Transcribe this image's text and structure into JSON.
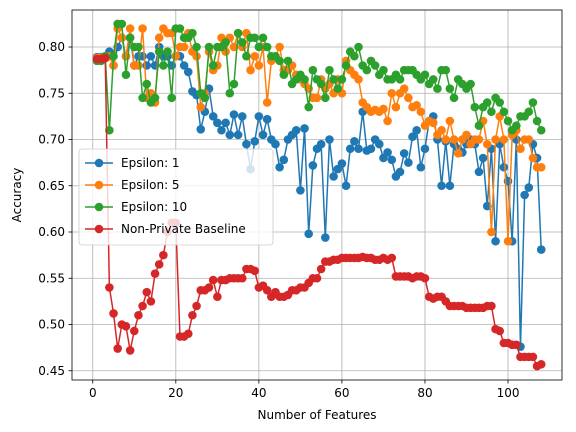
{
  "chart_data": {
    "type": "line",
    "title": "",
    "xlabel": "Number of Features",
    "ylabel": "Accuracy",
    "xlim": [
      -5,
      113
    ],
    "ylim": [
      0.44,
      0.84
    ],
    "xticks": [
      0,
      20,
      40,
      60,
      80,
      100
    ],
    "yticks": [
      0.45,
      0.5,
      0.55,
      0.6,
      0.65,
      0.7,
      0.75,
      0.8
    ],
    "xtick_labels": [
      "0",
      "20",
      "40",
      "60",
      "80",
      "100"
    ],
    "ytick_labels": [
      "0.45",
      "0.50",
      "0.55",
      "0.60",
      "0.65",
      "0.70",
      "0.75",
      "0.80"
    ],
    "grid": true,
    "legend_position": "center-left",
    "x": [
      1,
      2,
      3,
      4,
      5,
      6,
      7,
      8,
      9,
      10,
      11,
      12,
      13,
      14,
      15,
      16,
      17,
      18,
      19,
      20,
      21,
      22,
      23,
      24,
      25,
      26,
      27,
      28,
      29,
      30,
      31,
      32,
      33,
      34,
      35,
      36,
      37,
      38,
      39,
      40,
      41,
      42,
      43,
      44,
      45,
      46,
      47,
      48,
      49,
      50,
      51,
      52,
      53,
      54,
      55,
      56,
      57,
      58,
      59,
      60,
      61,
      62,
      63,
      64,
      65,
      66,
      67,
      68,
      69,
      70,
      71,
      72,
      73,
      74,
      75,
      76,
      77,
      78,
      79,
      80,
      81,
      82,
      83,
      84,
      85,
      86,
      87,
      88,
      89,
      90,
      91,
      92,
      93,
      94,
      95,
      96,
      97,
      98,
      99,
      100,
      101,
      102,
      103,
      104,
      105,
      106,
      107,
      108
    ],
    "series": [
      {
        "name": "Epsilon: 1",
        "color": "#1f77b4",
        "values": [
          0.789,
          0.789,
          0.79,
          0.795,
          0.78,
          0.8,
          0.81,
          0.79,
          0.81,
          0.78,
          0.79,
          0.79,
          0.78,
          0.79,
          0.78,
          0.8,
          0.79,
          0.79,
          0.78,
          0.79,
          0.79,
          0.78,
          0.773,
          0.752,
          0.748,
          0.711,
          0.73,
          0.755,
          0.725,
          0.718,
          0.71,
          0.718,
          0.705,
          0.727,
          0.705,
          0.725,
          0.695,
          0.668,
          0.698,
          0.725,
          0.705,
          0.722,
          0.7,
          0.695,
          0.67,
          0.678,
          0.7,
          0.705,
          0.71,
          0.645,
          0.712,
          0.598,
          0.672,
          0.69,
          0.695,
          0.594,
          0.7,
          0.66,
          0.668,
          0.674,
          0.65,
          0.69,
          0.698,
          0.69,
          0.73,
          0.688,
          0.69,
          0.7,
          0.695,
          0.68,
          0.686,
          0.678,
          0.66,
          0.665,
          0.685,
          0.675,
          0.703,
          0.71,
          0.67,
          0.69,
          0.72,
          0.725,
          0.7,
          0.65,
          0.698,
          0.65,
          0.695,
          0.69,
          0.686,
          0.695,
          0.7,
          0.695,
          0.665,
          0.68,
          0.628,
          0.69,
          0.59,
          0.695,
          0.67,
          0.655,
          0.59,
          0.7,
          0.476,
          0.64,
          0.648,
          0.695,
          0.68,
          0.581
        ]
      },
      {
        "name": "Epsilon: 5",
        "color": "#ff7f0e",
        "values": [
          0.788,
          0.788,
          0.79,
          0.79,
          0.78,
          0.82,
          0.81,
          0.79,
          0.82,
          0.78,
          0.78,
          0.82,
          0.745,
          0.75,
          0.74,
          0.81,
          0.82,
          0.815,
          0.815,
          0.79,
          0.8,
          0.8,
          0.815,
          0.795,
          0.79,
          0.735,
          0.75,
          0.795,
          0.775,
          0.78,
          0.81,
          0.795,
          0.81,
          0.8,
          0.815,
          0.8,
          0.815,
          0.775,
          0.79,
          0.78,
          0.8,
          0.74,
          0.785,
          0.79,
          0.8,
          0.775,
          0.775,
          0.78,
          0.77,
          0.765,
          0.76,
          0.755,
          0.745,
          0.745,
          0.765,
          0.755,
          0.76,
          0.75,
          0.765,
          0.75,
          0.785,
          0.775,
          0.77,
          0.765,
          0.74,
          0.735,
          0.73,
          0.732,
          0.73,
          0.733,
          0.72,
          0.75,
          0.735,
          0.75,
          0.755,
          0.745,
          0.735,
          0.737,
          0.73,
          0.715,
          0.72,
          0.718,
          0.705,
          0.71,
          0.7,
          0.72,
          0.7,
          0.685,
          0.7,
          0.705,
          0.695,
          0.7,
          0.7,
          0.72,
          0.695,
          0.6,
          0.7,
          0.725,
          0.7,
          0.59,
          0.705,
          0.71,
          0.69,
          0.7,
          0.7,
          0.68,
          0.67,
          0.67
        ]
      },
      {
        "name": "Epsilon: 10",
        "color": "#2ca02c",
        "values": [
          0.785,
          0.785,
          0.79,
          0.71,
          0.79,
          0.825,
          0.825,
          0.77,
          0.81,
          0.8,
          0.8,
          0.745,
          0.76,
          0.74,
          0.745,
          0.795,
          0.78,
          0.795,
          0.745,
          0.82,
          0.82,
          0.81,
          0.81,
          0.815,
          0.8,
          0.75,
          0.745,
          0.8,
          0.78,
          0.8,
          0.8,
          0.805,
          0.75,
          0.76,
          0.815,
          0.805,
          0.79,
          0.81,
          0.81,
          0.8,
          0.81,
          0.8,
          0.79,
          0.79,
          0.785,
          0.77,
          0.785,
          0.76,
          0.765,
          0.77,
          0.765,
          0.735,
          0.775,
          0.765,
          0.76,
          0.745,
          0.775,
          0.765,
          0.755,
          0.765,
          0.78,
          0.795,
          0.79,
          0.8,
          0.78,
          0.775,
          0.785,
          0.78,
          0.77,
          0.775,
          0.765,
          0.765,
          0.77,
          0.765,
          0.775,
          0.775,
          0.775,
          0.77,
          0.765,
          0.77,
          0.76,
          0.765,
          0.755,
          0.775,
          0.775,
          0.755,
          0.745,
          0.765,
          0.76,
          0.755,
          0.76,
          0.735,
          0.715,
          0.735,
          0.74,
          0.73,
          0.745,
          0.74,
          0.73,
          0.72,
          0.71,
          0.715,
          0.725,
          0.725,
          0.73,
          0.74,
          0.72,
          0.71
        ]
      },
      {
        "name": "Non-Private Baseline",
        "color": "#d62728",
        "values": [
          0.787,
          0.787,
          0.788,
          0.54,
          0.512,
          0.474,
          0.5,
          0.498,
          0.472,
          0.493,
          0.51,
          0.52,
          0.535,
          0.525,
          0.555,
          0.565,
          0.575,
          0.6,
          0.61,
          0.61,
          0.487,
          0.487,
          0.49,
          0.51,
          0.52,
          0.537,
          0.537,
          0.54,
          0.548,
          0.53,
          0.548,
          0.548,
          0.55,
          0.55,
          0.55,
          0.55,
          0.56,
          0.56,
          0.558,
          0.54,
          0.542,
          0.537,
          0.53,
          0.535,
          0.53,
          0.53,
          0.532,
          0.537,
          0.537,
          0.54,
          0.54,
          0.545,
          0.55,
          0.55,
          0.56,
          0.568,
          0.568,
          0.57,
          0.57,
          0.572,
          0.572,
          0.572,
          0.572,
          0.572,
          0.573,
          0.572,
          0.572,
          0.57,
          0.57,
          0.572,
          0.57,
          0.572,
          0.552,
          0.552,
          0.552,
          0.552,
          0.55,
          0.552,
          0.552,
          0.55,
          0.53,
          0.528,
          0.53,
          0.53,
          0.525,
          0.52,
          0.52,
          0.52,
          0.52,
          0.518,
          0.518,
          0.518,
          0.518,
          0.518,
          0.52,
          0.52,
          0.495,
          0.493,
          0.48,
          0.48,
          0.478,
          0.478,
          0.465,
          0.465,
          0.465,
          0.465,
          0.455,
          0.457
        ]
      }
    ]
  }
}
